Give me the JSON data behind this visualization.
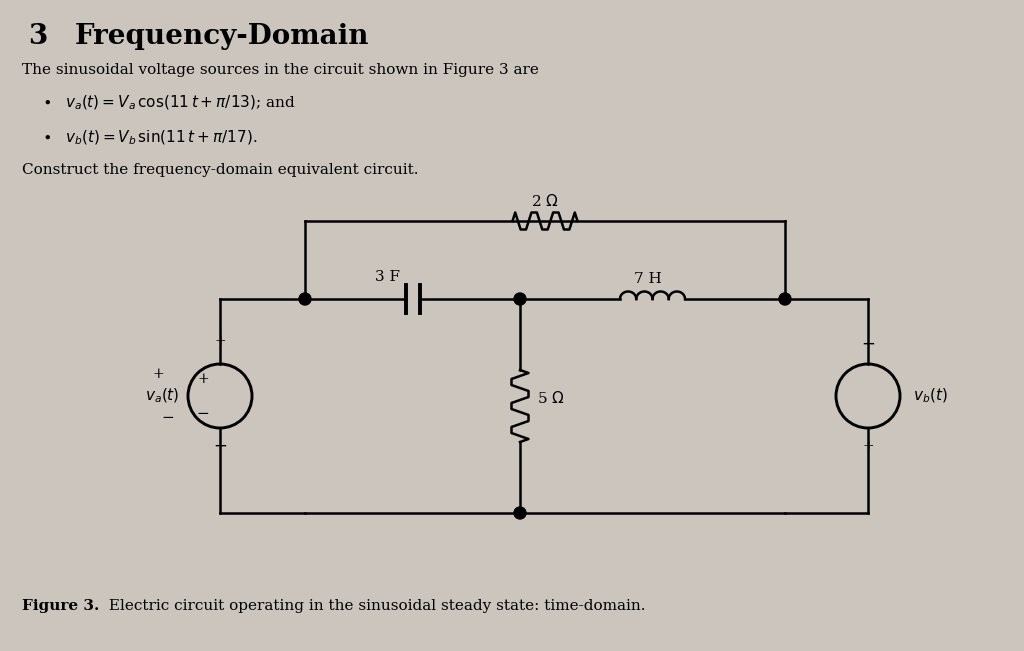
{
  "background_color": "#cbc5be",
  "title_number": "3",
  "title_text": "Frequency-Domain",
  "body_text": "The sinusoidal voltage sources in the circuit shown in Figure 3 are",
  "construct_text": "Construct the frequency-domain equivalent circuit.",
  "caption_bold": "Figure 3.",
  "caption_rest": " Electric circuit operating in the sinusoidal steady state: time-domain.",
  "source_left_plus": "+",
  "source_left_minus": "−",
  "source_right_plus": "+",
  "source_right_minus": "−"
}
